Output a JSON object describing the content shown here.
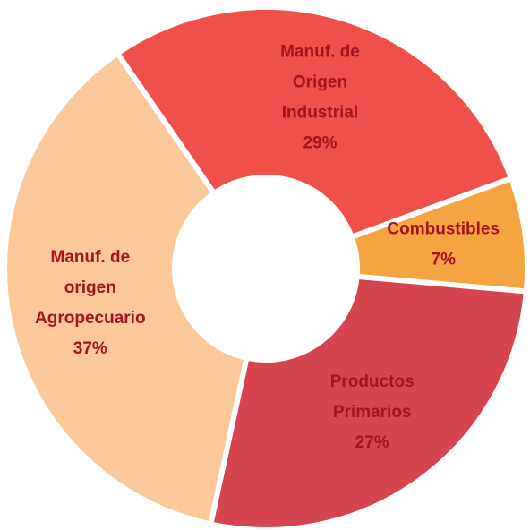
{
  "chart_data": {
    "type": "donut",
    "categories": [
      "Manuf. de Origen Industrial",
      "Combustibles",
      "Productos Primarios",
      "Manuf. de origen Agropecuario"
    ],
    "values": [
      29,
      7,
      27,
      37
    ],
    "value_labels": [
      "29%",
      "7%",
      "27%",
      "37%"
    ],
    "colors": [
      "#f0504a",
      "#f5a442",
      "#d4454d",
      "#fac899"
    ]
  }
}
